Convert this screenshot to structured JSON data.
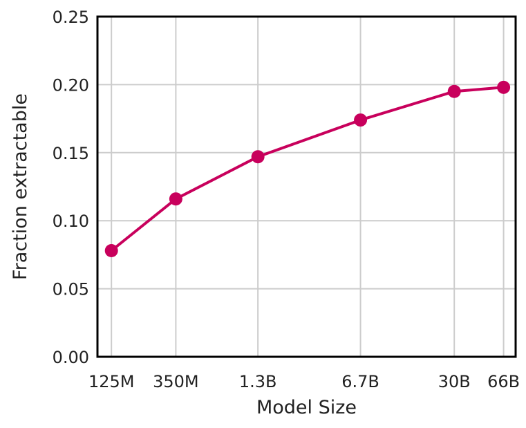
{
  "chart_data": {
    "type": "line",
    "title": "",
    "xlabel": "Model Size",
    "ylabel": "Fraction extractable",
    "x_scale": "log",
    "x_unit": "parameters",
    "ylim": [
      0,
      0.25
    ],
    "y_ticks": [
      0.0,
      0.05,
      0.1,
      0.15,
      0.2,
      0.25
    ],
    "y_tick_labels": [
      "0.00",
      "0.05",
      "0.10",
      "0.15",
      "0.20",
      "0.25"
    ],
    "categories": [
      "125M",
      "350M",
      "1.3B",
      "6.7B",
      "30B",
      "66B"
    ],
    "x": [
      125000000,
      350000000,
      1300000000,
      6700000000,
      30000000000,
      66000000000
    ],
    "series": [
      {
        "values": [
          0.078,
          0.116,
          0.147,
          0.174,
          0.195,
          0.198
        ]
      }
    ],
    "grid": true,
    "legend": "none",
    "colors": {
      "series": "#c8005c",
      "grid": "#cccccc",
      "axis": "#000000",
      "text": "#222222"
    }
  }
}
